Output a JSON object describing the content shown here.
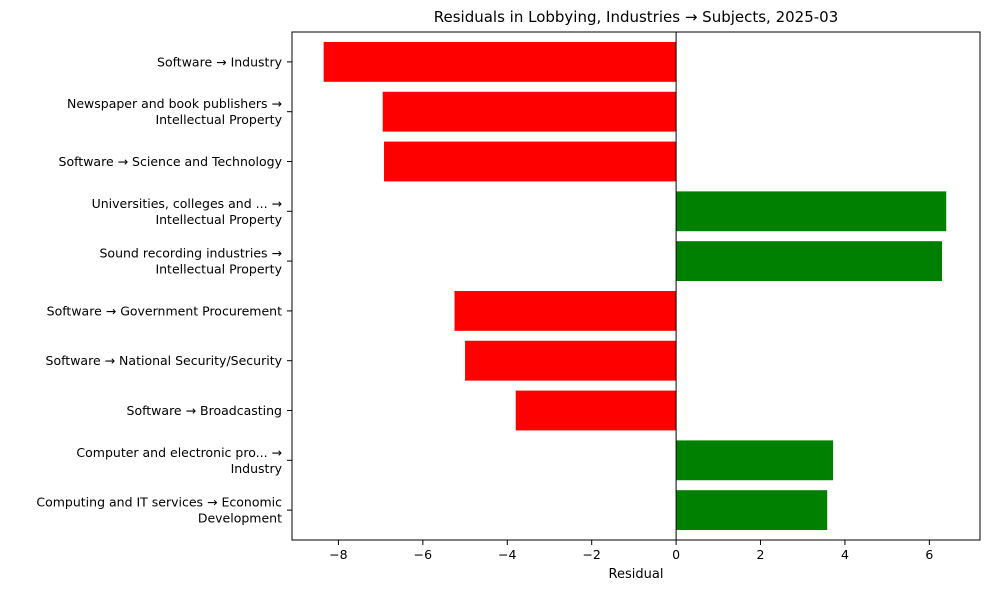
{
  "chart_data": {
    "type": "bar",
    "orientation": "horizontal",
    "title": "Residuals in Lobbying, Industries → Subjects, 2025-03",
    "xlabel": "Residual",
    "ylabel": "",
    "xlim": [
      -9.1,
      7.2
    ],
    "xticks": [
      -8,
      -6,
      -4,
      -2,
      0,
      2,
      4,
      6
    ],
    "xtick_labels": [
      "−8",
      "−6",
      "−4",
      "−2",
      "0",
      "2",
      "4",
      "6"
    ],
    "categories": [
      [
        "Software → Industry"
      ],
      [
        "Newspaper and book publishers →",
        "Intellectual Property"
      ],
      [
        "Software → Science and Technology"
      ],
      [
        "Universities, colleges and ... →",
        "Intellectual Property"
      ],
      [
        "Sound recording industries →",
        "Intellectual Property"
      ],
      [
        "Software → Government Procurement"
      ],
      [
        "Software → National Security/Security"
      ],
      [
        "Software → Broadcasting"
      ],
      [
        "Computer and electronic pro... →",
        "Industry"
      ],
      [
        "Computing and IT services → Economic",
        "Development"
      ]
    ],
    "values": [
      -8.35,
      -6.95,
      -6.92,
      6.4,
      6.3,
      -5.25,
      -5.0,
      -3.8,
      3.72,
      3.58
    ],
    "colors": {
      "positive": "#008000",
      "negative": "#ff0000"
    },
    "grid": false,
    "zero_line": true
  }
}
